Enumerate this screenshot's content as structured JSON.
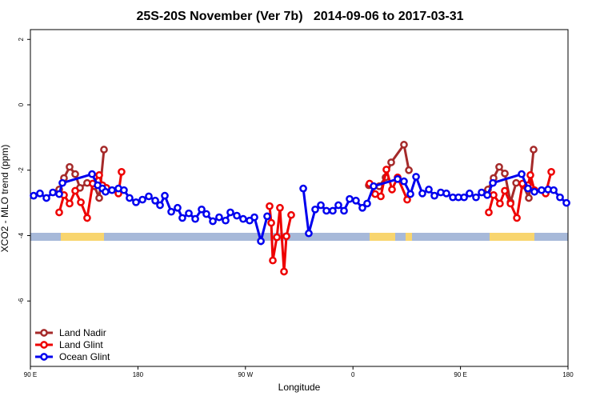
{
  "chart_data": {
    "type": "line",
    "title": "25S-20S November (Ver 7b)   2014-09-06 to 2017-03-31",
    "xlabel": "Longitude",
    "ylabel": "XCO2 - MLO trend (ppm)",
    "xlim": [
      90,
      540
    ],
    "xticks": [
      {
        "value": 90,
        "label": "90 E"
      },
      {
        "value": 180,
        "label": "180"
      },
      {
        "value": 270,
        "label": "90 W"
      },
      {
        "value": 360,
        "label": "0"
      },
      {
        "value": 450,
        "label": "90 E"
      },
      {
        "value": 540,
        "label": "180"
      }
    ],
    "ylim": [
      -8,
      2.3
    ],
    "yticks": [
      2,
      0,
      -2,
      -4,
      -6
    ],
    "legend": "bottom-left",
    "series": [
      {
        "name": "Land Nadir",
        "color": "#a52a2a",
        "x": [
          114.1,
          118.1,
          122.8,
          127.5,
          131.5,
          137.5,
          143.6,
          147.6,
          151.6,
          null,
          373.3,
          382.0,
          387.3,
          392.0,
          402.7,
          406.8,
          null,
          473.0,
          477.7,
          482.4,
          487.1,
          491.9,
          496.6,
          502.6,
          507.2,
          511.2
        ],
        "values": [
          -2.59,
          -2.24,
          -1.9,
          -2.12,
          -2.54,
          -2.39,
          -2.49,
          -2.85,
          -1.37,
          null,
          -2.46,
          -2.49,
          -2.22,
          -1.76,
          -1.22,
          -2.0,
          null,
          -2.59,
          -2.24,
          -1.9,
          -2.1,
          -2.98,
          -2.39,
          -2.46,
          -2.85,
          -1.37
        ]
      },
      {
        "name": "Land Glint",
        "color": "#ee0000",
        "x": [
          114.1,
          118.1,
          122.8,
          127.5,
          132.2,
          137.5,
          142.2,
          147.6,
          150.3,
          153.6,
          163.7,
          166.3,
          null,
          290.2,
          291.6,
          292.9,
          296.3,
          298.9,
          302.3,
          304.3,
          308.3,
          null,
          373.9,
          378.6,
          383.3,
          388.0,
          392.7,
          397.4,
          405.4,
          null,
          473.7,
          477.7,
          483.0,
          487.1,
          491.9,
          497.2,
          501.9,
          506.5,
          508.5,
          511.9,
          521.3,
          526.0
        ],
        "values": [
          -3.29,
          -2.76,
          -3.02,
          -2.63,
          -2.98,
          -3.46,
          -2.41,
          -2.15,
          -2.46,
          -2.54,
          -2.71,
          -2.05,
          null,
          -3.1,
          -3.61,
          -4.76,
          -4.05,
          -3.15,
          -5.1,
          -4.02,
          -3.37,
          null,
          -2.41,
          -2.73,
          -2.8,
          -1.98,
          -2.59,
          -2.22,
          -2.9,
          null,
          -3.29,
          -2.76,
          -3.02,
          -2.63,
          -3.02,
          -3.46,
          -2.41,
          -2.46,
          -2.15,
          -2.61,
          -2.71,
          -2.05
        ]
      },
      {
        "name": "Ocean Glint",
        "color": "#0000ee",
        "x": [
          92.7,
          98.0,
          103.4,
          108.8,
          114.1,
          116.8,
          141.6,
          146.3,
          150.3,
          152.9,
          158.3,
          163.7,
          168.3,
          173.0,
          178.4,
          183.8,
          189.1,
          194.5,
          198.5,
          202.5,
          207.9,
          213.2,
          217.2,
          222.6,
          228.0,
          233.3,
          237.3,
          242.7,
          248.0,
          253.4,
          257.4,
          262.8,
          268.1,
          273.5,
          277.5,
          282.9,
          288.2,
          null,
          318.4,
          323.0,
          328.4,
          333.1,
          337.8,
          343.1,
          347.8,
          352.5,
          357.2,
          362.5,
          367.9,
          371.9,
          377.3,
          397.4,
          402.7,
          408.1,
          412.8,
          418.1,
          423.5,
          428.2,
          433.5,
          438.2,
          443.6,
          448.3,
          453.0,
          457.6,
          463.0,
          467.7,
          472.4,
          477.1,
          501.2,
          506.5,
          511.9,
          517.9,
          523.3,
          528.0,
          533.3,
          538.7
        ],
        "values": [
          -2.78,
          -2.71,
          -2.85,
          -2.68,
          -2.73,
          -2.39,
          -2.12,
          -2.46,
          -2.56,
          -2.66,
          -2.61,
          -2.56,
          -2.61,
          -2.85,
          -2.98,
          -2.9,
          -2.8,
          -2.93,
          -3.07,
          -2.78,
          -3.27,
          -3.15,
          -3.46,
          -3.32,
          -3.49,
          -3.2,
          -3.34,
          -3.56,
          -3.44,
          -3.54,
          -3.29,
          -3.39,
          -3.49,
          -3.54,
          -3.44,
          -4.17,
          -3.41,
          null,
          -2.56,
          -3.93,
          -3.2,
          -3.07,
          -3.24,
          -3.24,
          -3.07,
          -3.24,
          -2.88,
          -2.93,
          -3.15,
          -3.02,
          -2.49,
          -2.27,
          -2.34,
          -2.73,
          -2.2,
          -2.71,
          -2.59,
          -2.78,
          -2.68,
          -2.71,
          -2.83,
          -2.83,
          -2.83,
          -2.71,
          -2.83,
          -2.68,
          -2.76,
          -2.39,
          -2.12,
          -2.56,
          -2.66,
          -2.61,
          -2.59,
          -2.61,
          -2.83,
          -3.0
        ]
      }
    ]
  }
}
